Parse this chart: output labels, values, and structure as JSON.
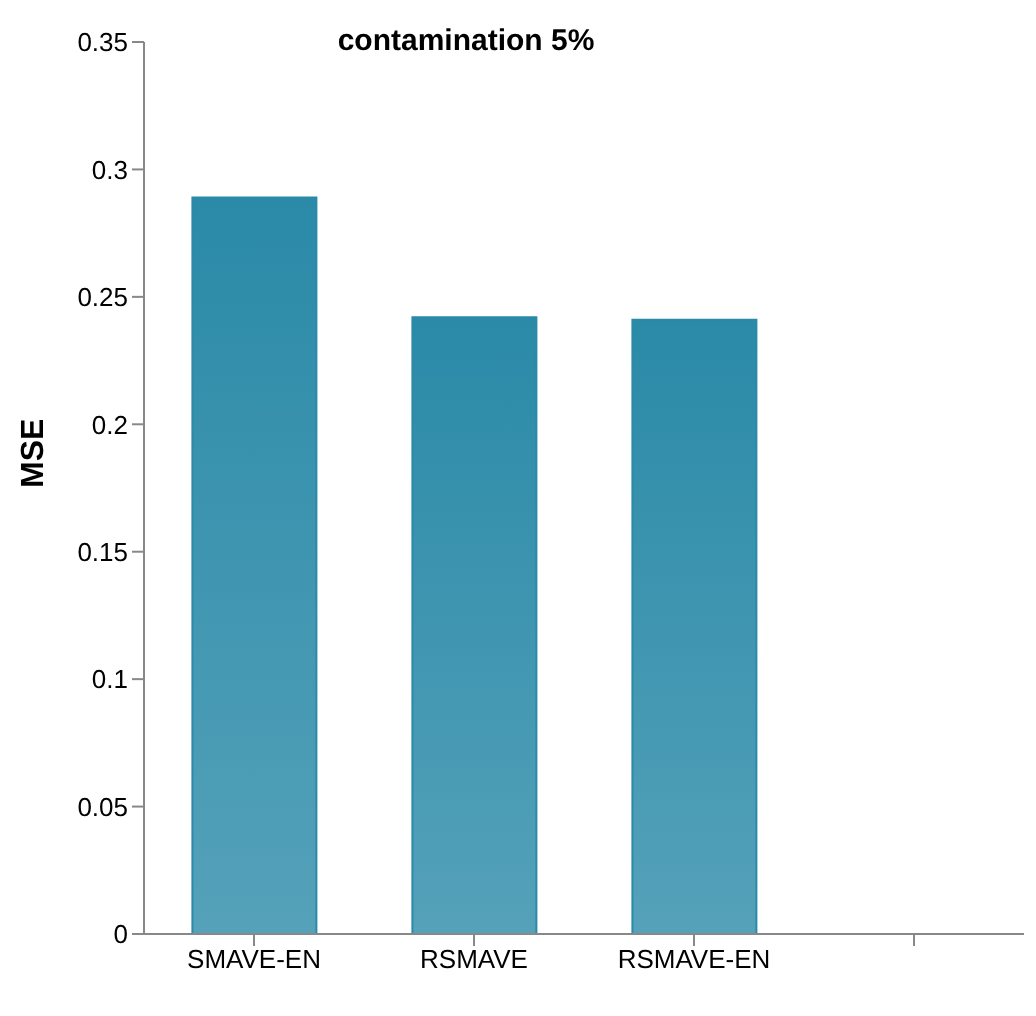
{
  "chart_data": {
    "type": "bar",
    "title": "contamination 5%",
    "ylabel": "MSE",
    "categories": [
      "SMAVE-EN",
      "RSMAVE",
      "RSMAVE-EN",
      null
    ],
    "values": [
      0.289,
      0.242,
      0.241,
      null
    ],
    "color": "#2a8aa8",
    "ylim": [
      0,
      0.35
    ],
    "yticks": [
      0,
      0.05,
      0.1,
      0.15,
      0.2,
      0.25,
      0.3,
      0.35
    ],
    "grid": false,
    "legend": false
  }
}
